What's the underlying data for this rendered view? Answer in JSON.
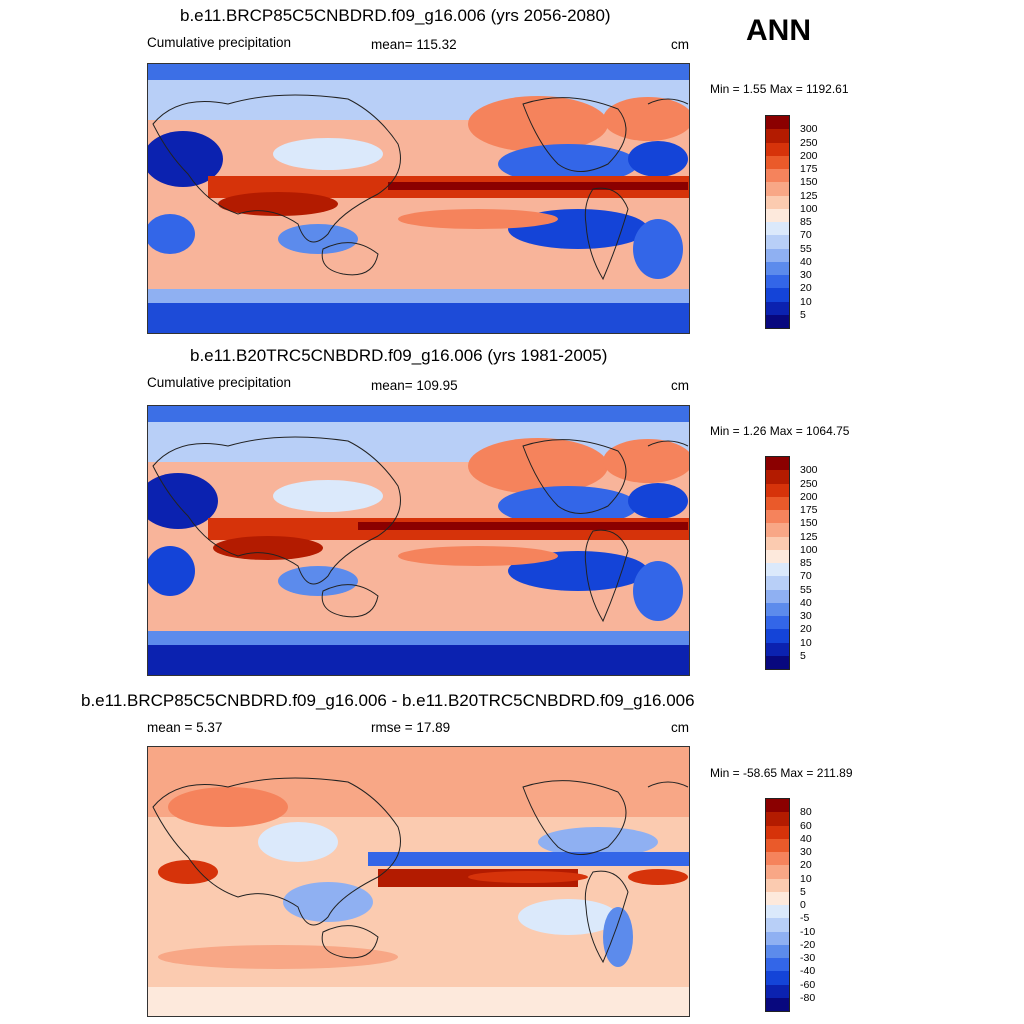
{
  "season": "ANN",
  "panels": [
    {
      "title": "b.e11.BRCP85C5CNBDRD.f09_g16.006 (yrs 2056-2080)",
      "left_label": "Cumulative precipitation",
      "mid_label": "mean= 115.32",
      "unit": "cm",
      "minmax": "Min =   1.55 Max = 1192.61",
      "colorbar": {
        "labels": [
          "300",
          "250",
          "200",
          "175",
          "150",
          "125",
          "100",
          "85",
          "70",
          "55",
          "40",
          "30",
          "20",
          "10",
          "5"
        ],
        "colors": [
          "#8b0000",
          "#b31b00",
          "#d6330a",
          "#ea5a2a",
          "#f5835c",
          "#f8a786",
          "#fbcbb0",
          "#fde9dc",
          "#dbe9fb",
          "#b8cff7",
          "#8fb0f2",
          "#5c8bec",
          "#3366e8",
          "#1444d8",
          "#0b22b0",
          "#08087e"
        ]
      }
    },
    {
      "title": "b.e11.B20TRC5CNBDRD.f09_g16.006 (yrs 1981-2005)",
      "left_label": "Cumulative precipitation",
      "mid_label": "mean= 109.95",
      "unit": "cm",
      "minmax": "Min =   1.26 Max = 1064.75",
      "colorbar": {
        "labels": [
          "300",
          "250",
          "200",
          "175",
          "150",
          "125",
          "100",
          "85",
          "70",
          "55",
          "40",
          "30",
          "20",
          "10",
          "5"
        ],
        "colors": [
          "#8b0000",
          "#b31b00",
          "#d6330a",
          "#ea5a2a",
          "#f5835c",
          "#f8a786",
          "#fbcbb0",
          "#fde9dc",
          "#dbe9fb",
          "#b8cff7",
          "#8fb0f2",
          "#5c8bec",
          "#3366e8",
          "#1444d8",
          "#0b22b0",
          "#08087e"
        ]
      }
    },
    {
      "title": "b.e11.BRCP85C5CNBDRD.f09_g16.006 - b.e11.B20TRC5CNBDRD.f09_g16.006",
      "left_label": "mean =   5.37",
      "mid_label": "rmse =  17.89",
      "unit": "cm",
      "minmax": "Min = -58.65 Max = 211.89",
      "colorbar": {
        "labels": [
          "80",
          "60",
          "40",
          "30",
          "20",
          "10",
          "5",
          "0",
          "-5",
          "-10",
          "-20",
          "-30",
          "-40",
          "-60",
          "-80"
        ],
        "colors": [
          "#8b0000",
          "#b31b00",
          "#d6330a",
          "#ea5a2a",
          "#f5835c",
          "#f8a786",
          "#fbcbb0",
          "#fde9dc",
          "#dbe9fb",
          "#b8cff7",
          "#8fb0f2",
          "#5c8bec",
          "#3366e8",
          "#1444d8",
          "#0b22b0",
          "#08087e"
        ]
      }
    }
  ]
}
